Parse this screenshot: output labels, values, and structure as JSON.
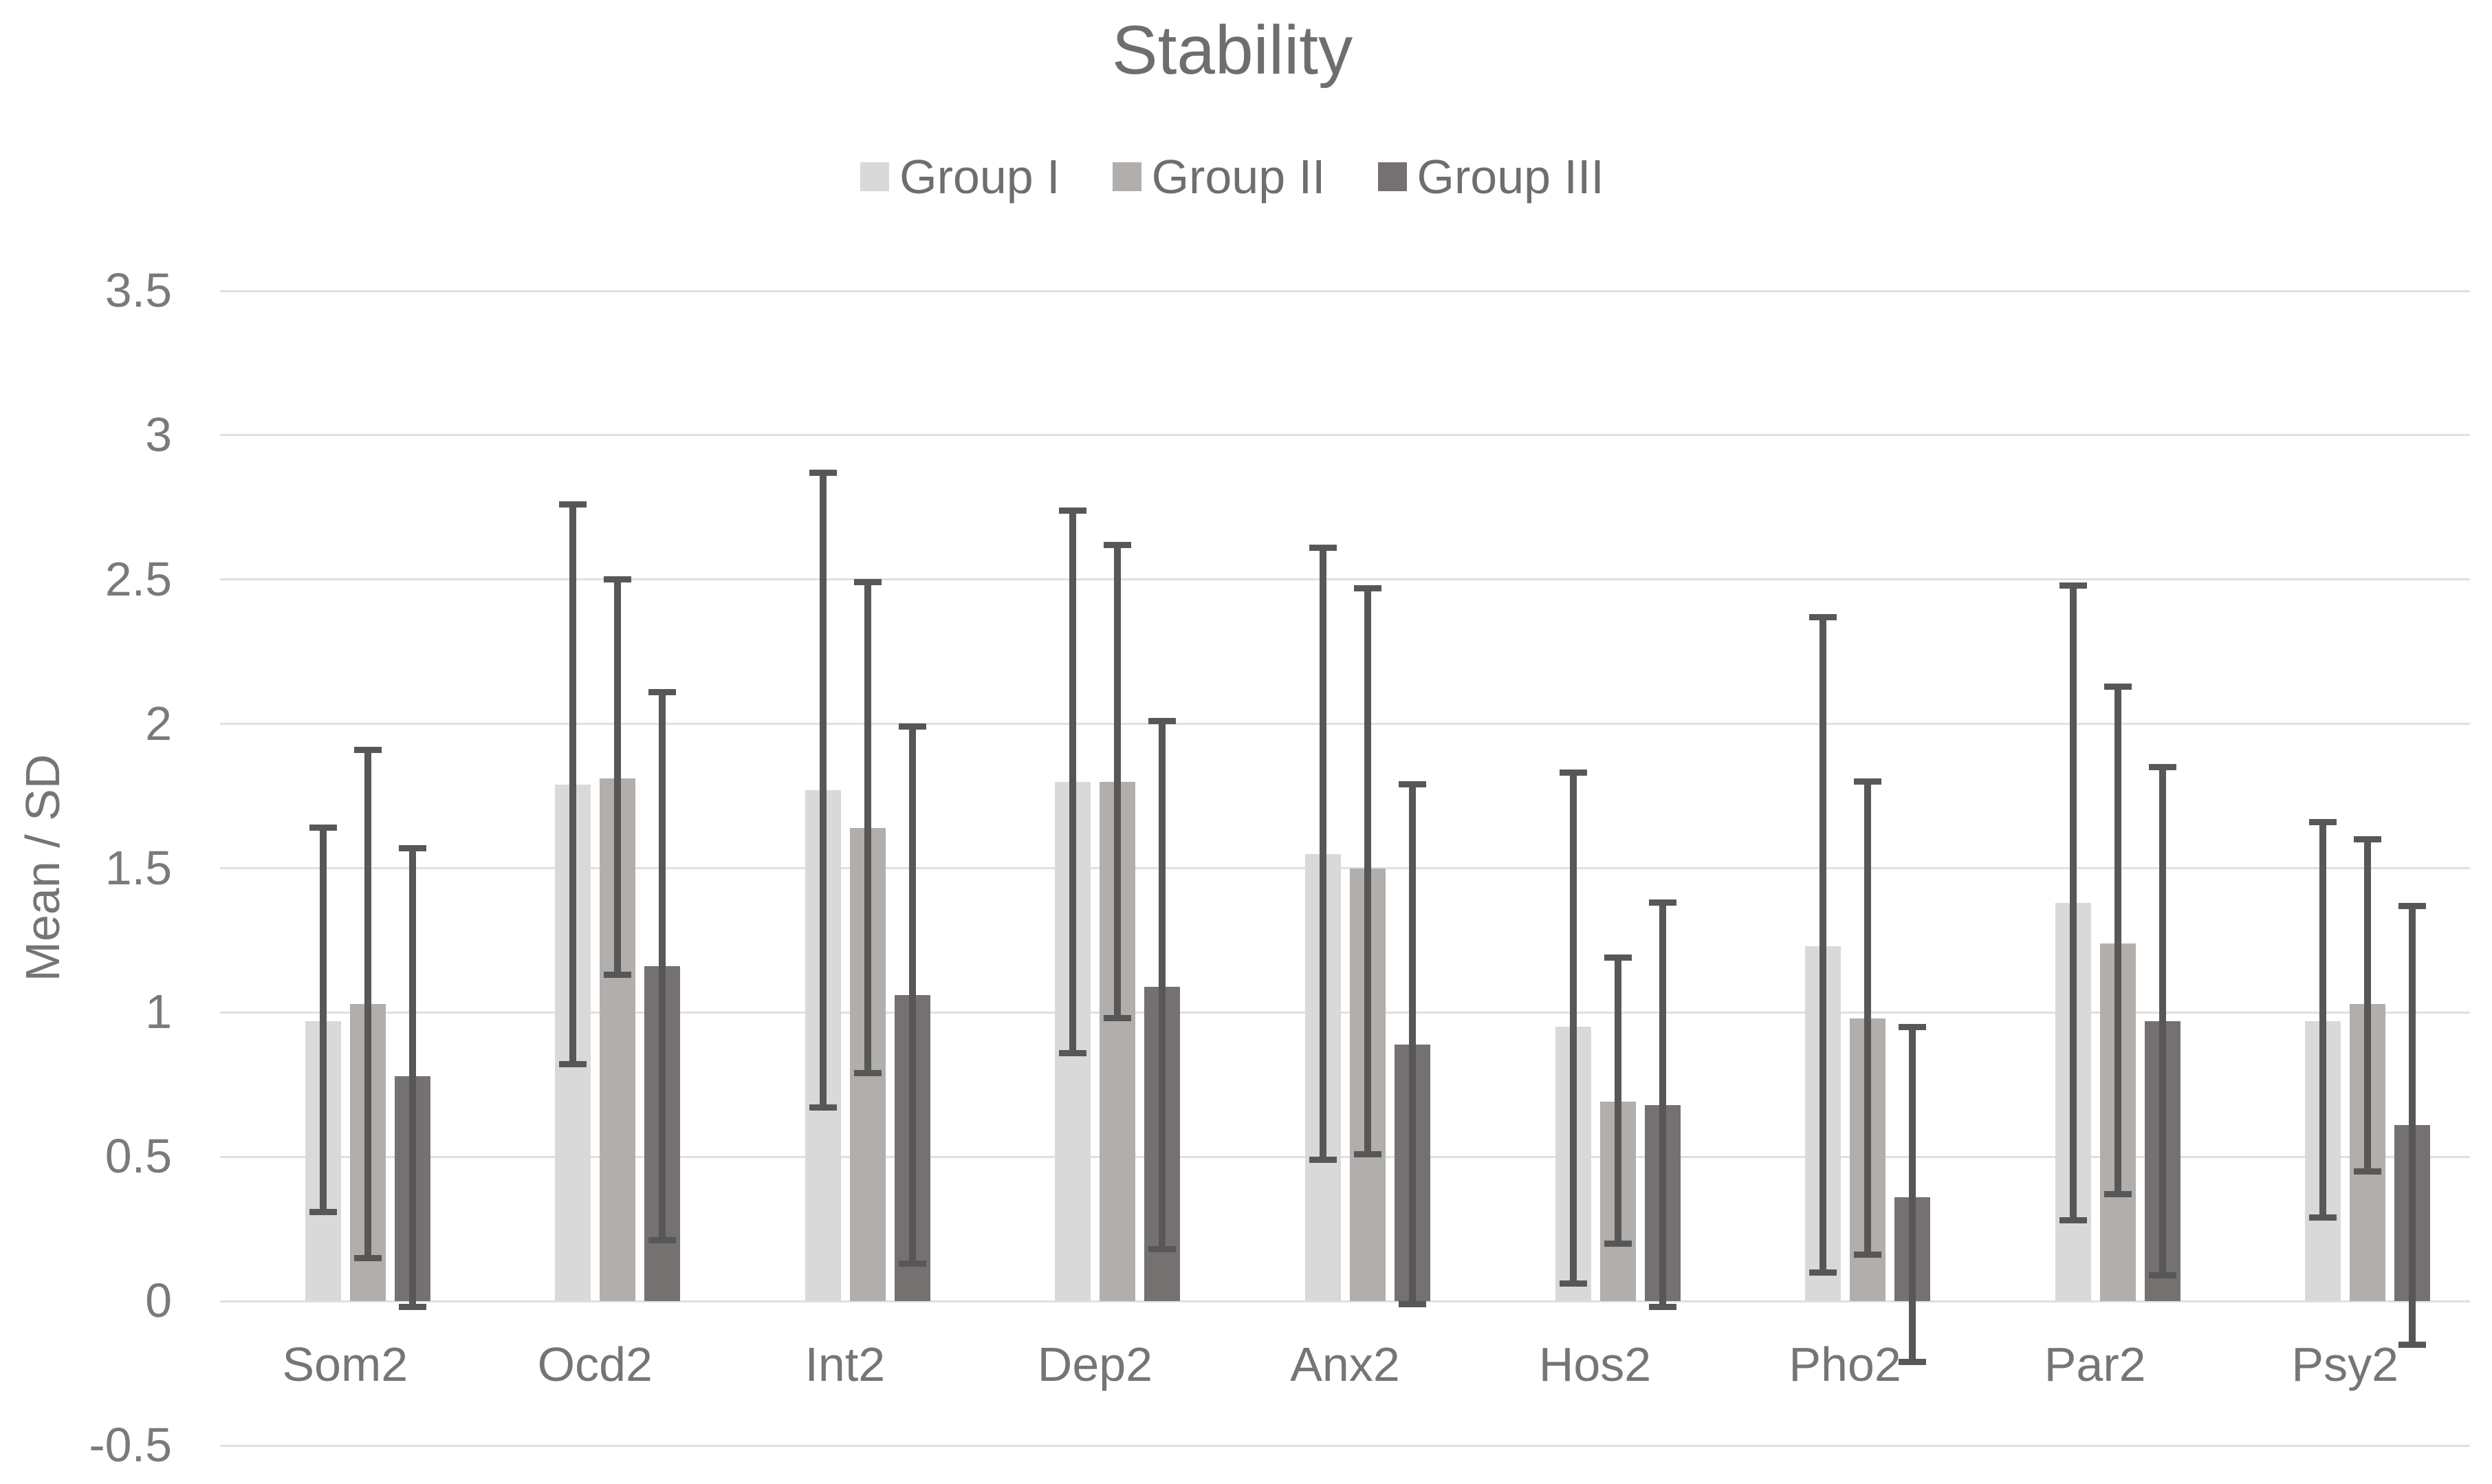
{
  "title": "Stability",
  "legend": {
    "items": [
      {
        "label": "Group I",
        "color": "#d9d9d9"
      },
      {
        "label": "Group II",
        "color": "#b1aeab"
      },
      {
        "label": "Group III",
        "color": "#767171"
      }
    ]
  },
  "y_axis": {
    "title": "Mean / SD",
    "tick_labels": [
      "3.5",
      "3",
      "2.5",
      "2",
      "1.5",
      "1",
      "0.5",
      "0",
      "-0.5"
    ]
  },
  "x_axis": {
    "categories": [
      "Som2",
      "Ocd2",
      "Int2",
      "Dep2",
      "Anx2",
      "Hos2",
      "Pho2",
      "Par2",
      "Psy2"
    ]
  },
  "chart_data": {
    "type": "bar",
    "title": "Stability",
    "xlabel": "",
    "ylabel": "Mean / SD",
    "ylim": [
      -0.5,
      3.5
    ],
    "ytick_step": 0.5,
    "grid": true,
    "legend_position": "top",
    "gridline_color": "#e0e0e0",
    "error_bar_color": "#575757",
    "categories": [
      "Som2",
      "Ocd2",
      "Int2",
      "Dep2",
      "Anx2",
      "Hos2",
      "Pho2",
      "Par2",
      "Psy2"
    ],
    "series": [
      {
        "name": "Group I",
        "color": "#d9d9d9",
        "values": [
          0.97,
          1.79,
          1.77,
          1.8,
          1.55,
          0.95,
          1.23,
          1.38,
          0.97
        ],
        "error_low": [
          0.31,
          0.82,
          0.67,
          0.86,
          0.49,
          0.06,
          0.1,
          0.28,
          0.29
        ],
        "error_high": [
          1.64,
          2.76,
          2.87,
          2.74,
          2.61,
          1.83,
          2.37,
          2.48,
          1.66
        ]
      },
      {
        "name": "Group II",
        "color": "#b1aeab",
        "values": [
          1.03,
          1.81,
          1.64,
          1.8,
          1.5,
          0.69,
          0.98,
          1.24,
          1.03
        ],
        "error_low": [
          0.15,
          1.13,
          0.79,
          0.98,
          0.51,
          0.2,
          0.16,
          0.37,
          0.45
        ],
        "error_high": [
          1.91,
          2.5,
          2.49,
          2.62,
          2.47,
          1.19,
          1.8,
          2.13,
          1.6
        ]
      },
      {
        "name": "Group III",
        "color": "#767171",
        "values": [
          0.78,
          1.16,
          1.06,
          1.09,
          0.89,
          0.68,
          0.36,
          0.97,
          0.61
        ],
        "error_low": [
          -0.02,
          0.21,
          0.13,
          0.18,
          -0.01,
          -0.02,
          -0.21,
          0.09,
          -0.15
        ],
        "error_high": [
          1.57,
          2.11,
          1.99,
          2.01,
          1.79,
          1.38,
          0.95,
          1.85,
          1.37
        ]
      }
    ]
  }
}
